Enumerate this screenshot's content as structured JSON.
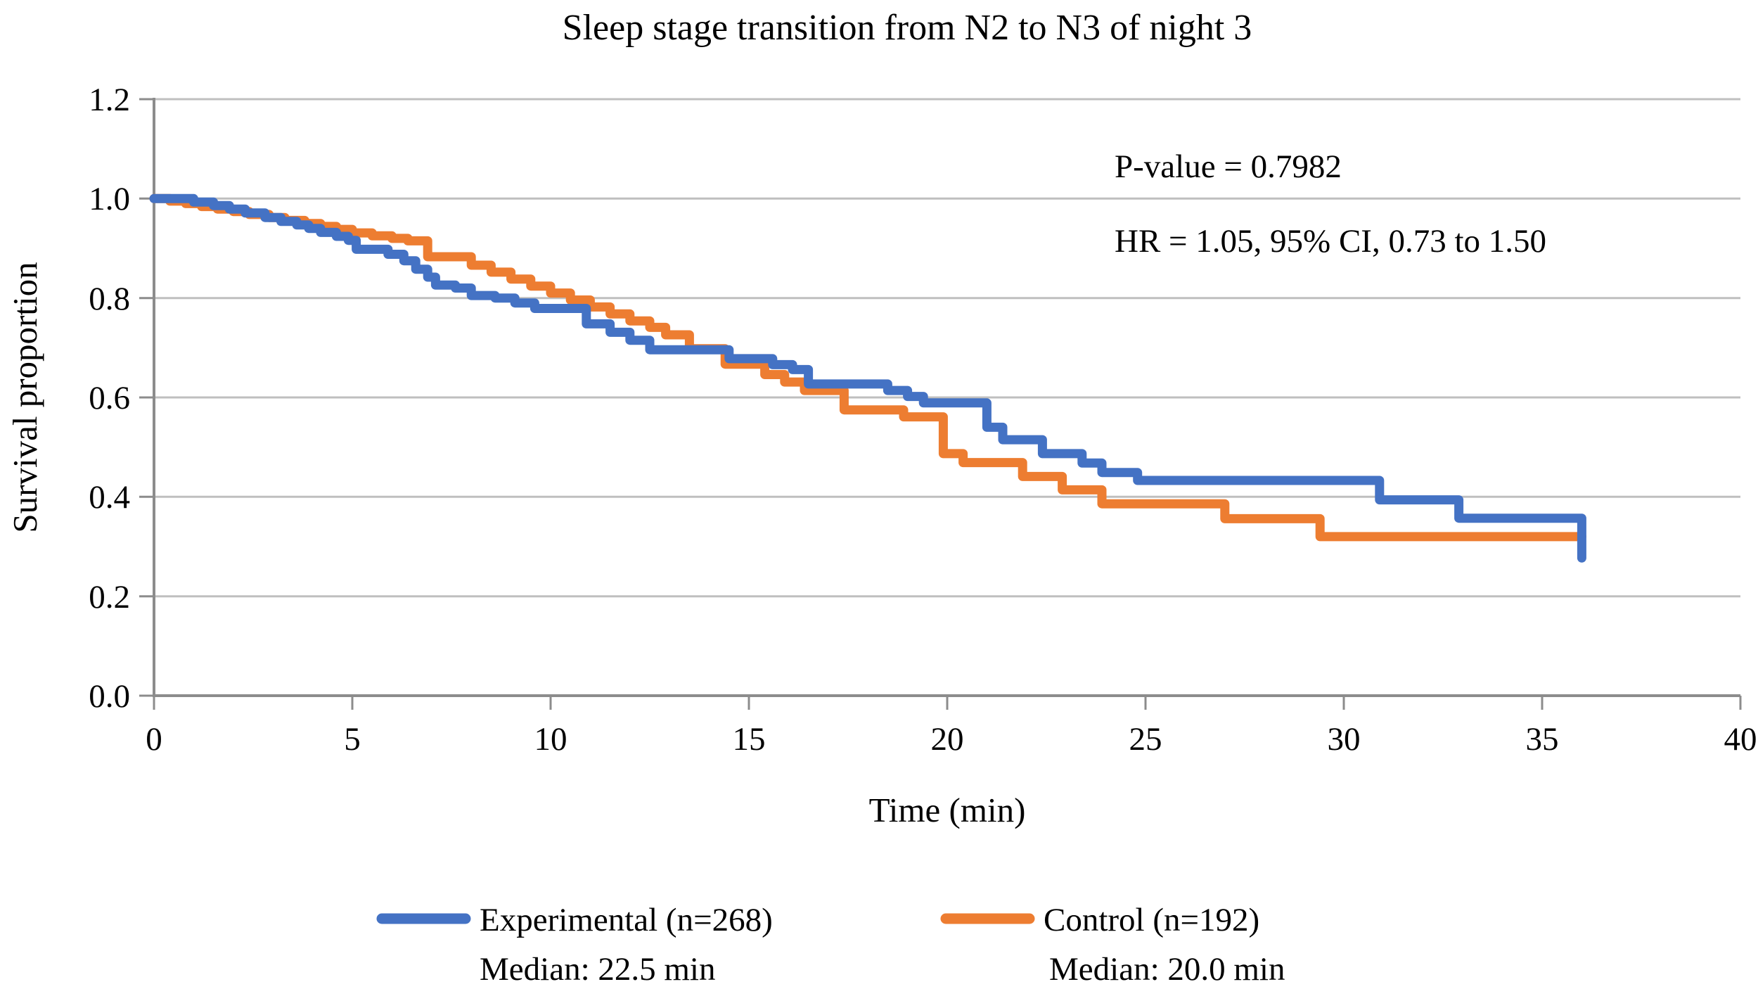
{
  "title": "Sleep stage transition from N2 to N3 of night 3",
  "annotations": {
    "p_value": "P-value = 0.7982",
    "hazard_ratio": "HR = 1.05, 95% CI, 0.73 to 1.50"
  },
  "axes": {
    "y_label": "Survival proportion",
    "x_label": "Time (min)",
    "y_ticks": [
      "1.2",
      "1.0",
      "0.8",
      "0.6",
      "0.4",
      "0.2",
      "0.0"
    ],
    "x_ticks": [
      "0",
      "5",
      "10",
      "15",
      "20",
      "25",
      "30",
      "35",
      "40"
    ]
  },
  "legend": {
    "experimental": {
      "label": "Experimental (n=268)",
      "median": "Median: 22.5 min",
      "color": "#4472C4"
    },
    "control": {
      "label": "Control (n=192)",
      "median": "Median: 20.0 min",
      "color": "#ED7D31"
    }
  },
  "chart_data": {
    "type": "line",
    "subtype": "kaplan-meier-step",
    "title": "Sleep stage transition from N2 to N3 of night 3",
    "xlabel": "Time (min)",
    "ylabel": "Survival proportion",
    "xlim": [
      0,
      40
    ],
    "ylim": [
      0.0,
      1.2
    ],
    "x_tick_step": 5,
    "y_tick_step": 0.2,
    "grid": "horizontal",
    "legend_position": "bottom",
    "annotations": [
      "P-value = 0.7982",
      "HR = 1.05, 95% CI, 0.73 to 1.50"
    ],
    "series": [
      {
        "name": "Experimental (n=268)",
        "n": 268,
        "median_min": 22.5,
        "color": "#4472C4",
        "steps": [
          [
            0,
            1.0
          ],
          [
            1.0,
            0.993
          ],
          [
            1.5,
            0.986
          ],
          [
            1.9,
            0.979
          ],
          [
            2.3,
            0.971
          ],
          [
            2.8,
            0.962
          ],
          [
            3.2,
            0.954
          ],
          [
            3.6,
            0.947
          ],
          [
            3.9,
            0.94
          ],
          [
            4.2,
            0.932
          ],
          [
            4.6,
            0.924
          ],
          [
            4.9,
            0.916
          ],
          [
            5.1,
            0.898
          ],
          [
            5.9,
            0.888
          ],
          [
            6.3,
            0.875
          ],
          [
            6.6,
            0.858
          ],
          [
            6.9,
            0.842
          ],
          [
            7.1,
            0.826
          ],
          [
            7.6,
            0.82
          ],
          [
            8.0,
            0.805
          ],
          [
            8.6,
            0.8
          ],
          [
            9.1,
            0.79
          ],
          [
            9.6,
            0.779
          ],
          [
            10.9,
            0.748
          ],
          [
            11.5,
            0.731
          ],
          [
            12.0,
            0.715
          ],
          [
            12.5,
            0.696
          ],
          [
            14.5,
            0.678
          ],
          [
            15.6,
            0.666
          ],
          [
            16.1,
            0.656
          ],
          [
            16.5,
            0.627
          ],
          [
            18.5,
            0.614
          ],
          [
            19.0,
            0.602
          ],
          [
            19.4,
            0.589
          ],
          [
            21.0,
            0.54
          ],
          [
            21.4,
            0.515
          ],
          [
            22.4,
            0.487
          ],
          [
            23.4,
            0.468
          ],
          [
            23.9,
            0.449
          ],
          [
            24.8,
            0.433
          ],
          [
            30.9,
            0.394
          ],
          [
            32.9,
            0.357
          ],
          [
            36.0,
            0.277
          ]
        ]
      },
      {
        "name": "Control (n=192)",
        "n": 192,
        "median_min": 20.0,
        "color": "#ED7D31",
        "steps": [
          [
            0,
            1.0
          ],
          [
            0.4,
            0.995
          ],
          [
            0.8,
            0.99
          ],
          [
            1.2,
            0.984
          ],
          [
            1.6,
            0.979
          ],
          [
            2.0,
            0.974
          ],
          [
            2.4,
            0.968
          ],
          [
            2.9,
            0.962
          ],
          [
            3.3,
            0.956
          ],
          [
            3.8,
            0.95
          ],
          [
            4.2,
            0.944
          ],
          [
            4.6,
            0.938
          ],
          [
            5.0,
            0.931
          ],
          [
            5.5,
            0.925
          ],
          [
            6.0,
            0.92
          ],
          [
            6.4,
            0.915
          ],
          [
            6.9,
            0.883
          ],
          [
            8.0,
            0.866
          ],
          [
            8.5,
            0.852
          ],
          [
            9.0,
            0.838
          ],
          [
            9.5,
            0.824
          ],
          [
            10.0,
            0.81
          ],
          [
            10.5,
            0.796
          ],
          [
            11.0,
            0.782
          ],
          [
            11.5,
            0.768
          ],
          [
            12.0,
            0.754
          ],
          [
            12.5,
            0.741
          ],
          [
            12.9,
            0.726
          ],
          [
            13.5,
            0.698
          ],
          [
            14.4,
            0.667
          ],
          [
            15.4,
            0.646
          ],
          [
            15.9,
            0.631
          ],
          [
            16.4,
            0.614
          ],
          [
            17.4,
            0.575
          ],
          [
            18.9,
            0.561
          ],
          [
            19.9,
            0.487
          ],
          [
            20.4,
            0.469
          ],
          [
            21.9,
            0.441
          ],
          [
            22.9,
            0.414
          ],
          [
            23.9,
            0.386
          ],
          [
            27.0,
            0.356
          ],
          [
            29.4,
            0.32
          ],
          [
            36.0,
            0.32
          ]
        ]
      }
    ]
  }
}
